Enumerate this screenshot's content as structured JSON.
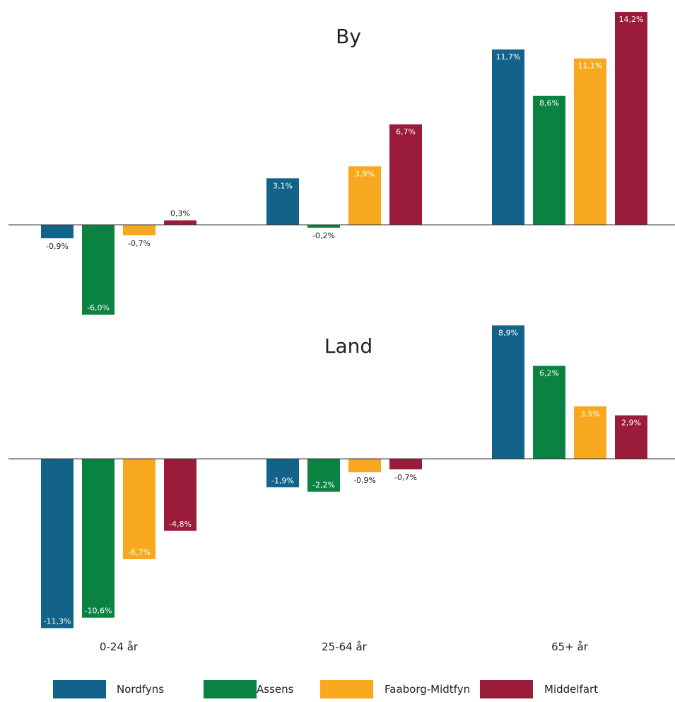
{
  "chart_data": {
    "type": "bar",
    "categories": [
      "0-24 år",
      "25-64 år",
      "65+ år"
    ],
    "series_names": [
      "Nordfyns",
      "Assens",
      "Faaborg-Midtfyn",
      "Middelfart"
    ],
    "colors": {
      "Nordfyns": "#12628a",
      "Assens": "#0a8342",
      "Faaborg-Midtfyn": "#f7a81e",
      "Middelfart": "#9b1b3a"
    },
    "panels": [
      {
        "title": "By",
        "series": [
          {
            "name": "Nordfyns",
            "values": [
              -0.9,
              3.1,
              11.7
            ],
            "labels": [
              "-0,9%",
              "3,1%",
              "11,7%"
            ]
          },
          {
            "name": "Assens",
            "values": [
              -6.0,
              -0.2,
              8.6
            ],
            "labels": [
              "-6,0%",
              "-0,2%",
              "8,6%"
            ]
          },
          {
            "name": "Faaborg-Midtfyn",
            "values": [
              -0.7,
              3.9,
              11.1
            ],
            "labels": [
              "-0,7%",
              "3,9%",
              "11,1%"
            ]
          },
          {
            "name": "Middelfart",
            "values": [
              0.3,
              6.7,
              14.2
            ],
            "labels": [
              "0,3%",
              "6,7%",
              "14,2%"
            ]
          }
        ]
      },
      {
        "title": "Land",
        "series": [
          {
            "name": "Nordfyns",
            "values": [
              -11.3,
              -1.9,
              8.9
            ],
            "labels": [
              "-11,3%",
              "-1,9%",
              "8,9%"
            ]
          },
          {
            "name": "Assens",
            "values": [
              -10.6,
              -2.2,
              6.2
            ],
            "labels": [
              "-10,6%",
              "-2,2%",
              "6,2%"
            ]
          },
          {
            "name": "Faaborg-Midtfyn",
            "values": [
              -6.7,
              -0.9,
              3.5
            ],
            "labels": [
              "-6,7%",
              "-0,9%",
              "3,5%"
            ]
          },
          {
            "name": "Middelfart",
            "values": [
              -4.8,
              -0.7,
              2.9
            ],
            "labels": [
              "-4,8%",
              "-0,7%",
              "2,9%"
            ]
          }
        ]
      }
    ],
    "grid": false,
    "legend_position": "bottom"
  }
}
